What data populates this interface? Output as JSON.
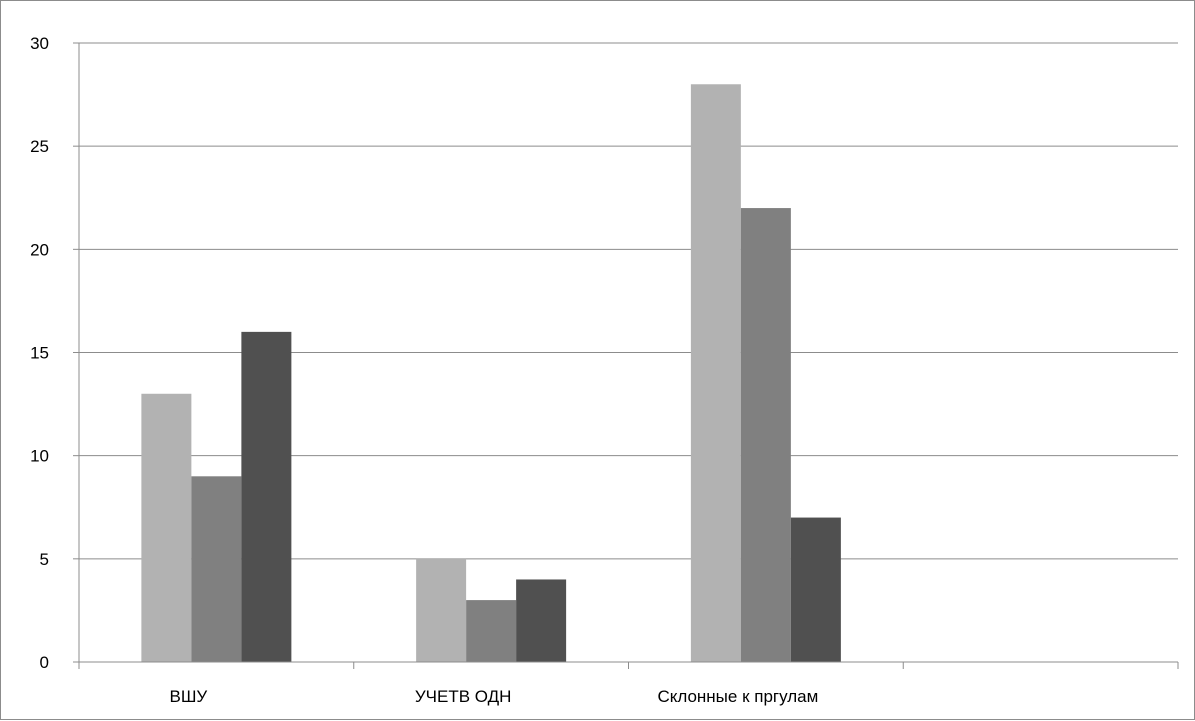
{
  "chart_data": {
    "type": "bar",
    "title": "",
    "xlabel": "",
    "ylabel": "",
    "categories": [
      "ВШУ",
      "УЧЕТВ ОДН",
      "Склонные к пргулам",
      ""
    ],
    "series": [
      {
        "values": [
          13,
          5,
          28,
          null
        ]
      },
      {
        "values": [
          9,
          3,
          22,
          null
        ]
      },
      {
        "values": [
          16,
          4,
          7,
          null
        ]
      }
    ],
    "ylim": [
      0,
      30
    ],
    "yticks": [
      "0",
      "5",
      "10",
      "15",
      "20",
      "25",
      "30"
    ],
    "grid": true,
    "legend": "none",
    "colors": {
      "series": [
        "#b2b2b2",
        "#808080",
        "#505050"
      ],
      "grid": "#8c8c8c",
      "axis": "#8c8c8c"
    }
  }
}
